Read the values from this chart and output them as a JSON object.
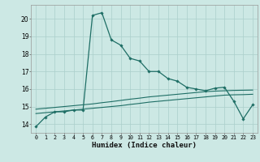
{
  "xlabel": "Humidex (Indice chaleur)",
  "bg_color": "#cce8e4",
  "grid_color": "#aacfcb",
  "line_color": "#1e6e65",
  "xlim": [
    -0.5,
    23.5
  ],
  "ylim": [
    13.5,
    20.8
  ],
  "yticks": [
    14,
    15,
    16,
    17,
    18,
    19,
    20
  ],
  "xticks": [
    0,
    1,
    2,
    3,
    4,
    5,
    6,
    7,
    8,
    9,
    10,
    11,
    12,
    13,
    14,
    15,
    16,
    17,
    18,
    19,
    20,
    21,
    22,
    23
  ],
  "series1_x": [
    0,
    1,
    2,
    3,
    4,
    5,
    6,
    7,
    8,
    9,
    10,
    11,
    12,
    13,
    14,
    15,
    16,
    17,
    18,
    19,
    20,
    21,
    22,
    23
  ],
  "series1_y": [
    13.85,
    14.4,
    14.7,
    14.7,
    14.8,
    14.8,
    20.2,
    20.35,
    18.8,
    18.5,
    17.75,
    17.6,
    17.0,
    17.0,
    16.6,
    16.45,
    16.1,
    16.0,
    15.9,
    16.05,
    16.1,
    15.3,
    14.3,
    15.1
  ],
  "series2_x": [
    0,
    1,
    2,
    3,
    4,
    5,
    6,
    7,
    8,
    9,
    10,
    11,
    12,
    13,
    14,
    15,
    16,
    17,
    18,
    19,
    20,
    21,
    22,
    23
  ],
  "series2_y": [
    14.85,
    14.9,
    14.95,
    15.0,
    15.05,
    15.1,
    15.15,
    15.22,
    15.28,
    15.35,
    15.42,
    15.48,
    15.55,
    15.6,
    15.65,
    15.7,
    15.75,
    15.8,
    15.85,
    15.88,
    15.9,
    15.92,
    15.93,
    15.94
  ],
  "series3_x": [
    0,
    1,
    2,
    3,
    4,
    5,
    6,
    7,
    8,
    9,
    10,
    11,
    12,
    13,
    14,
    15,
    16,
    17,
    18,
    19,
    20,
    21,
    22,
    23
  ],
  "series3_y": [
    14.6,
    14.65,
    14.7,
    14.75,
    14.8,
    14.85,
    14.9,
    14.95,
    15.0,
    15.05,
    15.12,
    15.18,
    15.25,
    15.3,
    15.35,
    15.4,
    15.45,
    15.5,
    15.55,
    15.6,
    15.65,
    15.67,
    15.68,
    15.7
  ]
}
